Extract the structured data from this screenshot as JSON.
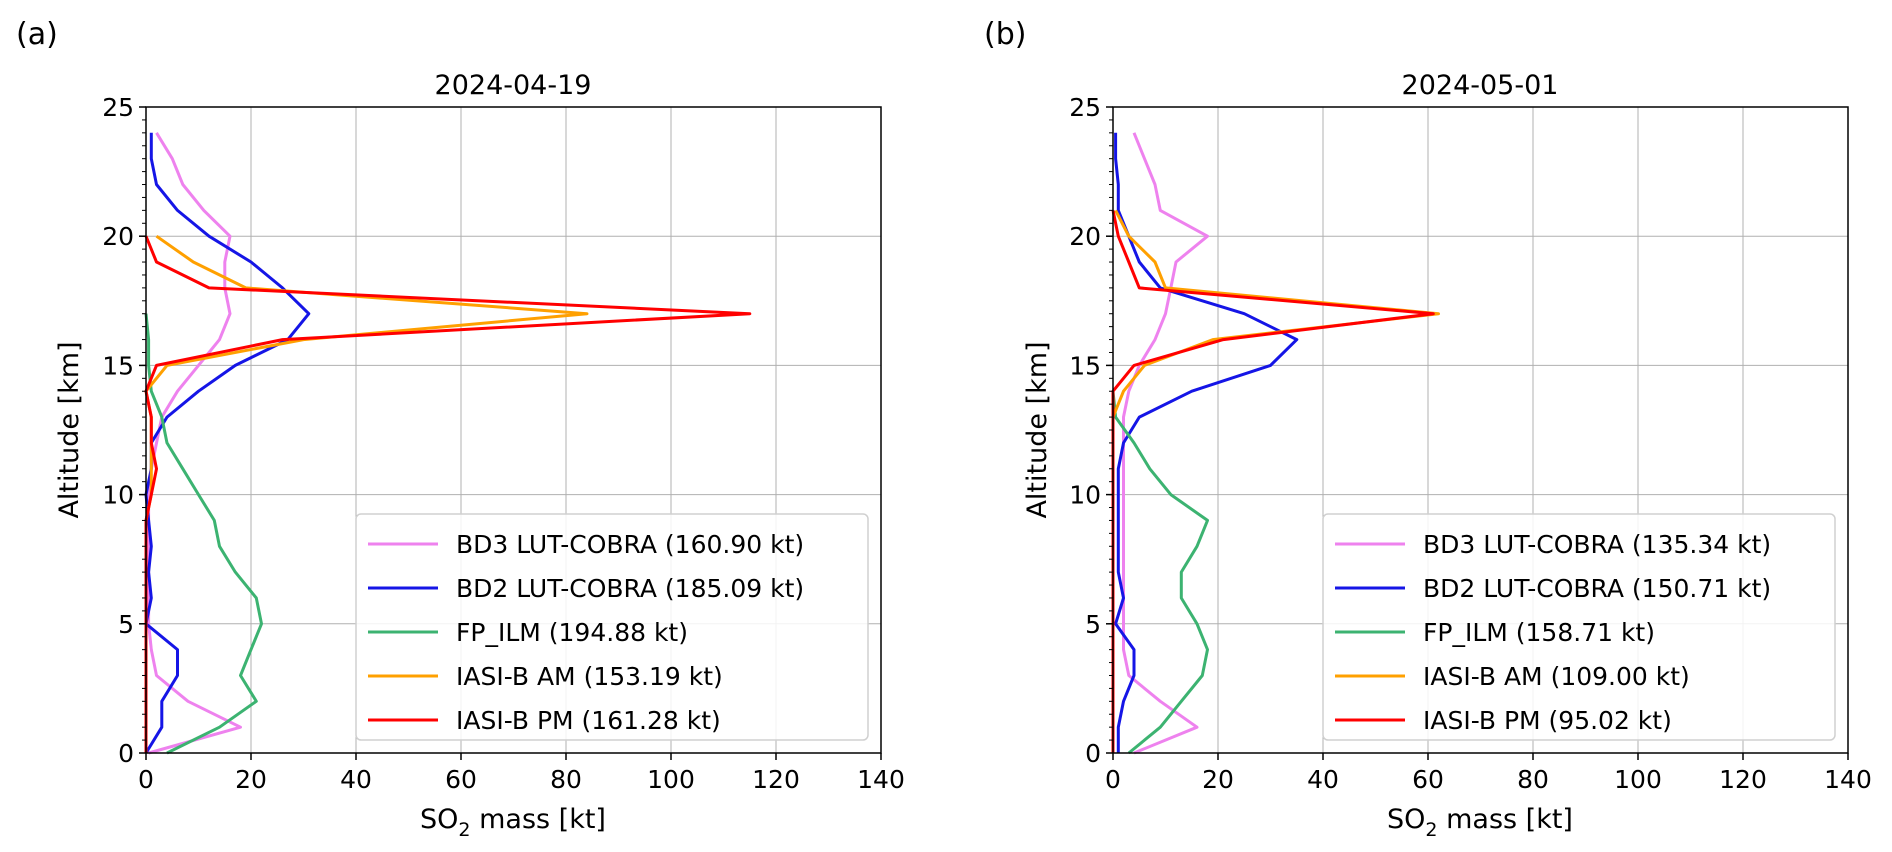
{
  "chart_data": [
    {
      "type": "line",
      "panel_label": "(a)",
      "title": "2024-04-19",
      "xlabel_main": "SO",
      "xlabel_sub": "2",
      "xlabel_rest": " mass [kt]",
      "ylabel": "Altitude [km]",
      "xlim": [
        0,
        140
      ],
      "ylim": [
        0,
        25
      ],
      "xticks": [
        "0",
        "20",
        "40",
        "60",
        "80",
        "100",
        "120",
        "140"
      ],
      "yticks": [
        "0",
        "5",
        "10",
        "15",
        "20",
        "25"
      ],
      "grid": true,
      "legend_position": "lower-right",
      "series": [
        {
          "name": "BD3 LUT-COBRA (160.90 kt)",
          "color": "#ee82ee",
          "points": [
            [
              0.5,
              0
            ],
            [
              18,
              1
            ],
            [
              8,
              2
            ],
            [
              2,
              3
            ],
            [
              1,
              4
            ],
            [
              0.5,
              5
            ],
            [
              0.5,
              6
            ],
            [
              0.5,
              7
            ],
            [
              0.5,
              8
            ],
            [
              0.5,
              9
            ],
            [
              0.5,
              10
            ],
            [
              1,
              11
            ],
            [
              2,
              12
            ],
            [
              3,
              13
            ],
            [
              6,
              14
            ],
            [
              10,
              15
            ],
            [
              14,
              16
            ],
            [
              16,
              17
            ],
            [
              15,
              18
            ],
            [
              15,
              19
            ],
            [
              16,
              20
            ],
            [
              11,
              21
            ],
            [
              7,
              22
            ],
            [
              5,
              23
            ],
            [
              2,
              24
            ]
          ]
        },
        {
          "name": "BD2 LUT-COBRA (185.09 kt)",
          "color": "#1515e6",
          "points": [
            [
              0,
              0
            ],
            [
              3,
              1
            ],
            [
              3,
              2
            ],
            [
              6,
              3
            ],
            [
              6,
              4
            ],
            [
              0,
              5
            ],
            [
              1,
              6
            ],
            [
              0.5,
              7
            ],
            [
              1,
              8
            ],
            [
              0.5,
              9
            ],
            [
              0,
              10
            ],
            [
              1,
              11
            ],
            [
              1,
              12
            ],
            [
              4,
              13
            ],
            [
              10,
              14
            ],
            [
              17,
              15
            ],
            [
              27,
              16
            ],
            [
              31,
              17
            ],
            [
              26,
              18
            ],
            [
              20,
              19
            ],
            [
              12,
              20
            ],
            [
              6,
              21
            ],
            [
              2,
              22
            ],
            [
              1,
              23
            ],
            [
              1,
              24
            ]
          ]
        },
        {
          "name": "FP_ILM (194.88 kt)",
          "color": "#3cb371",
          "points": [
            [
              4,
              0
            ],
            [
              14,
              1
            ],
            [
              21,
              2
            ],
            [
              18,
              3
            ],
            [
              20,
              4
            ],
            [
              22,
              5
            ],
            [
              21,
              6
            ],
            [
              17,
              7
            ],
            [
              14,
              8
            ],
            [
              13,
              9
            ],
            [
              10,
              10
            ],
            [
              7,
              11
            ],
            [
              4,
              12
            ],
            [
              3,
              13
            ],
            [
              1,
              14
            ],
            [
              0.5,
              15
            ],
            [
              0.5,
              16
            ],
            [
              0,
              17
            ]
          ]
        },
        {
          "name": "IASI-B AM (153.19 kt)",
          "color": "#ffa000",
          "points": [
            [
              0,
              0
            ],
            [
              0,
              5
            ],
            [
              0,
              9
            ],
            [
              1,
              10
            ],
            [
              1,
              11
            ],
            [
              1,
              12
            ],
            [
              1,
              13
            ],
            [
              0,
              14
            ],
            [
              4,
              15
            ],
            [
              30,
              16
            ],
            [
              84,
              17
            ],
            [
              19,
              18
            ],
            [
              9,
              19
            ],
            [
              2,
              20
            ]
          ]
        },
        {
          "name": "IASI-B PM (161.28 kt)",
          "color": "#ff0000",
          "points": [
            [
              0,
              0
            ],
            [
              0,
              5
            ],
            [
              0,
              9
            ],
            [
              1,
              10
            ],
            [
              2,
              11
            ],
            [
              1,
              12
            ],
            [
              1,
              13
            ],
            [
              0,
              14
            ],
            [
              2,
              15
            ],
            [
              26,
              16
            ],
            [
              115,
              17
            ],
            [
              12,
              18
            ],
            [
              2,
              19
            ],
            [
              0,
              20
            ]
          ]
        }
      ]
    },
    {
      "type": "line",
      "panel_label": "(b)",
      "title": "2024-05-01",
      "xlabel_main": "SO",
      "xlabel_sub": "2",
      "xlabel_rest": " mass [kt]",
      "ylabel": "Altitude [km]",
      "xlim": [
        0,
        140
      ],
      "ylim": [
        0,
        25
      ],
      "xticks": [
        "0",
        "20",
        "40",
        "60",
        "80",
        "100",
        "120",
        "140"
      ],
      "yticks": [
        "0",
        "5",
        "10",
        "15",
        "20",
        "25"
      ],
      "grid": true,
      "legend_position": "lower-right",
      "series": [
        {
          "name": "BD3 LUT-COBRA (135.34 kt)",
          "color": "#ee82ee",
          "points": [
            [
              4,
              0
            ],
            [
              16,
              1
            ],
            [
              9,
              2
            ],
            [
              3,
              3
            ],
            [
              2,
              4
            ],
            [
              2,
              5
            ],
            [
              2,
              6
            ],
            [
              2,
              7
            ],
            [
              2,
              8
            ],
            [
              2,
              9
            ],
            [
              2,
              10
            ],
            [
              2,
              11
            ],
            [
              2,
              12
            ],
            [
              2,
              13
            ],
            [
              3,
              14
            ],
            [
              5,
              15
            ],
            [
              8,
              16
            ],
            [
              10,
              17
            ],
            [
              11,
              18
            ],
            [
              12,
              19
            ],
            [
              18,
              20
            ],
            [
              9,
              21
            ],
            [
              8,
              22
            ],
            [
              6,
              23
            ],
            [
              4,
              24
            ]
          ]
        },
        {
          "name": "BD2 LUT-COBRA (150.71 kt)",
          "color": "#1515e6",
          "points": [
            [
              1,
              0
            ],
            [
              1,
              1
            ],
            [
              2,
              2
            ],
            [
              4,
              3
            ],
            [
              4,
              4
            ],
            [
              0.5,
              5
            ],
            [
              2,
              6
            ],
            [
              1,
              7
            ],
            [
              1,
              8
            ],
            [
              1,
              9
            ],
            [
              1,
              10
            ],
            [
              1,
              11
            ],
            [
              2,
              12
            ],
            [
              5,
              13
            ],
            [
              15,
              14
            ],
            [
              30,
              15
            ],
            [
              35,
              16
            ],
            [
              25,
              17
            ],
            [
              9,
              18
            ],
            [
              5,
              19
            ],
            [
              3,
              20
            ],
            [
              1,
              21
            ],
            [
              1,
              22
            ],
            [
              0.5,
              23
            ],
            [
              0.5,
              24
            ]
          ]
        },
        {
          "name": "FP_ILM (158.71 kt)",
          "color": "#3cb371",
          "points": [
            [
              3,
              0
            ],
            [
              9,
              1
            ],
            [
              13,
              2
            ],
            [
              17,
              3
            ],
            [
              18,
              4
            ],
            [
              16,
              5
            ],
            [
              13,
              6
            ],
            [
              13,
              7
            ],
            [
              16,
              8
            ],
            [
              18,
              9
            ],
            [
              11,
              10
            ],
            [
              7,
              11
            ],
            [
              4,
              12
            ],
            [
              0.5,
              13
            ],
            [
              0,
              14
            ]
          ]
        },
        {
          "name": "IASI-B AM (109.00 kt)",
          "color": "#ffa000",
          "points": [
            [
              0,
              0
            ],
            [
              0,
              13
            ],
            [
              2,
              14
            ],
            [
              6,
              15
            ],
            [
              19,
              16
            ],
            [
              62,
              17
            ],
            [
              10,
              18
            ],
            [
              8,
              19
            ],
            [
              3,
              20
            ],
            [
              0.5,
              21
            ]
          ]
        },
        {
          "name": "IASI-B PM (95.02 kt)",
          "color": "#ff0000",
          "points": [
            [
              0,
              0
            ],
            [
              0,
              13
            ],
            [
              0,
              14
            ],
            [
              4,
              15
            ],
            [
              21,
              16
            ],
            [
              61,
              17
            ],
            [
              5,
              18
            ],
            [
              3,
              19
            ],
            [
              1,
              20
            ],
            [
              0,
              21
            ]
          ]
        }
      ]
    }
  ]
}
